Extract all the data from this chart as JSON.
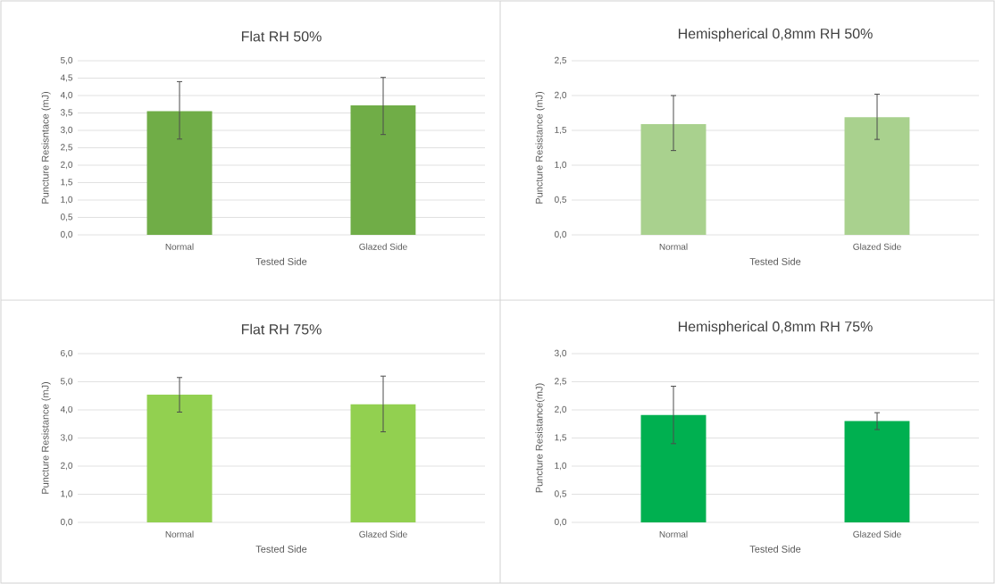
{
  "chart_data": [
    {
      "type": "bar",
      "title": "Flat RH 50%",
      "xlabel": "Tested Side",
      "ylabel": "Puncture Resisntace (mJ)",
      "categories": [
        "Normal",
        "Glazed Side"
      ],
      "values": [
        3.55,
        3.72
      ],
      "errors": [
        [
          2.75,
          4.4
        ],
        [
          2.88,
          4.52
        ]
      ],
      "color": "#70ad47",
      "ylim": [
        0,
        5
      ],
      "yticks": [
        {
          "value": 0,
          "label": "0,0"
        },
        {
          "value": 0.5,
          "label": "0,5"
        },
        {
          "value": 1,
          "label": "1,0"
        },
        {
          "value": 1.5,
          "label": "1,5"
        },
        {
          "value": 2,
          "label": "2,0"
        },
        {
          "value": 2.5,
          "label": "2,5"
        },
        {
          "value": 3,
          "label": "3,0"
        },
        {
          "value": 3.5,
          "label": "3,5"
        },
        {
          "value": 4,
          "label": "4,0"
        },
        {
          "value": 4.5,
          "label": "4,5"
        },
        {
          "value": 5,
          "label": "5,0"
        }
      ],
      "grid": "y"
    },
    {
      "type": "bar",
      "title": "Hemispherical 0,8mm RH 50%",
      "xlabel": "Tested  Side",
      "ylabel": "Puncture Resistance (mJ)",
      "categories": [
        "Normal",
        "Glazed Side"
      ],
      "values": [
        1.59,
        1.69
      ],
      "errors": [
        [
          1.21,
          2.0
        ],
        [
          1.37,
          2.02
        ]
      ],
      "color": "#a9d18e",
      "ylim": [
        0,
        2.5
      ],
      "yticks": [
        {
          "value": 0,
          "label": "0,0"
        },
        {
          "value": 0.5,
          "label": "0,5"
        },
        {
          "value": 1,
          "label": "1,0"
        },
        {
          "value": 1.5,
          "label": "1,5"
        },
        {
          "value": 2,
          "label": "2,0"
        },
        {
          "value": 2.5,
          "label": "2,5"
        }
      ],
      "grid": "y"
    },
    {
      "type": "bar",
      "title": "Flat RH 75%",
      "xlabel": "Tested Side",
      "ylabel": "Puncture Resistance (mJ)",
      "categories": [
        "Normal",
        "Glazed Side"
      ],
      "values": [
        4.55,
        4.2
      ],
      "errors": [
        [
          3.92,
          5.15
        ],
        [
          3.22,
          5.2
        ]
      ],
      "color": "#92d050",
      "ylim": [
        0,
        6
      ],
      "yticks": [
        {
          "value": 0,
          "label": "0,0"
        },
        {
          "value": 1,
          "label": "1,0"
        },
        {
          "value": 2,
          "label": "2,0"
        },
        {
          "value": 3,
          "label": "3,0"
        },
        {
          "value": 4,
          "label": "4,0"
        },
        {
          "value": 5,
          "label": "5,0"
        },
        {
          "value": 6,
          "label": "6,0"
        }
      ],
      "grid": "y"
    },
    {
      "type": "bar",
      "title": "Hemispherical 0,8mm RH 75%",
      "xlabel": "Tested Side",
      "ylabel": "Puncture Resistance(mJ)",
      "categories": [
        "Normal",
        "Glazed Side"
      ],
      "values": [
        1.91,
        1.8
      ],
      "errors": [
        [
          1.4,
          2.42
        ],
        [
          1.65,
          1.95
        ]
      ],
      "color": "#00b050",
      "ylim": [
        0,
        3
      ],
      "yticks": [
        {
          "value": 0,
          "label": "0,0"
        },
        {
          "value": 0.5,
          "label": "0,5"
        },
        {
          "value": 1,
          "label": "1,0"
        },
        {
          "value": 1.5,
          "label": "1,5"
        },
        {
          "value": 2,
          "label": "2,0"
        },
        {
          "value": 2.5,
          "label": "2,5"
        },
        {
          "value": 3,
          "label": "3,0"
        }
      ],
      "grid": "y"
    }
  ]
}
